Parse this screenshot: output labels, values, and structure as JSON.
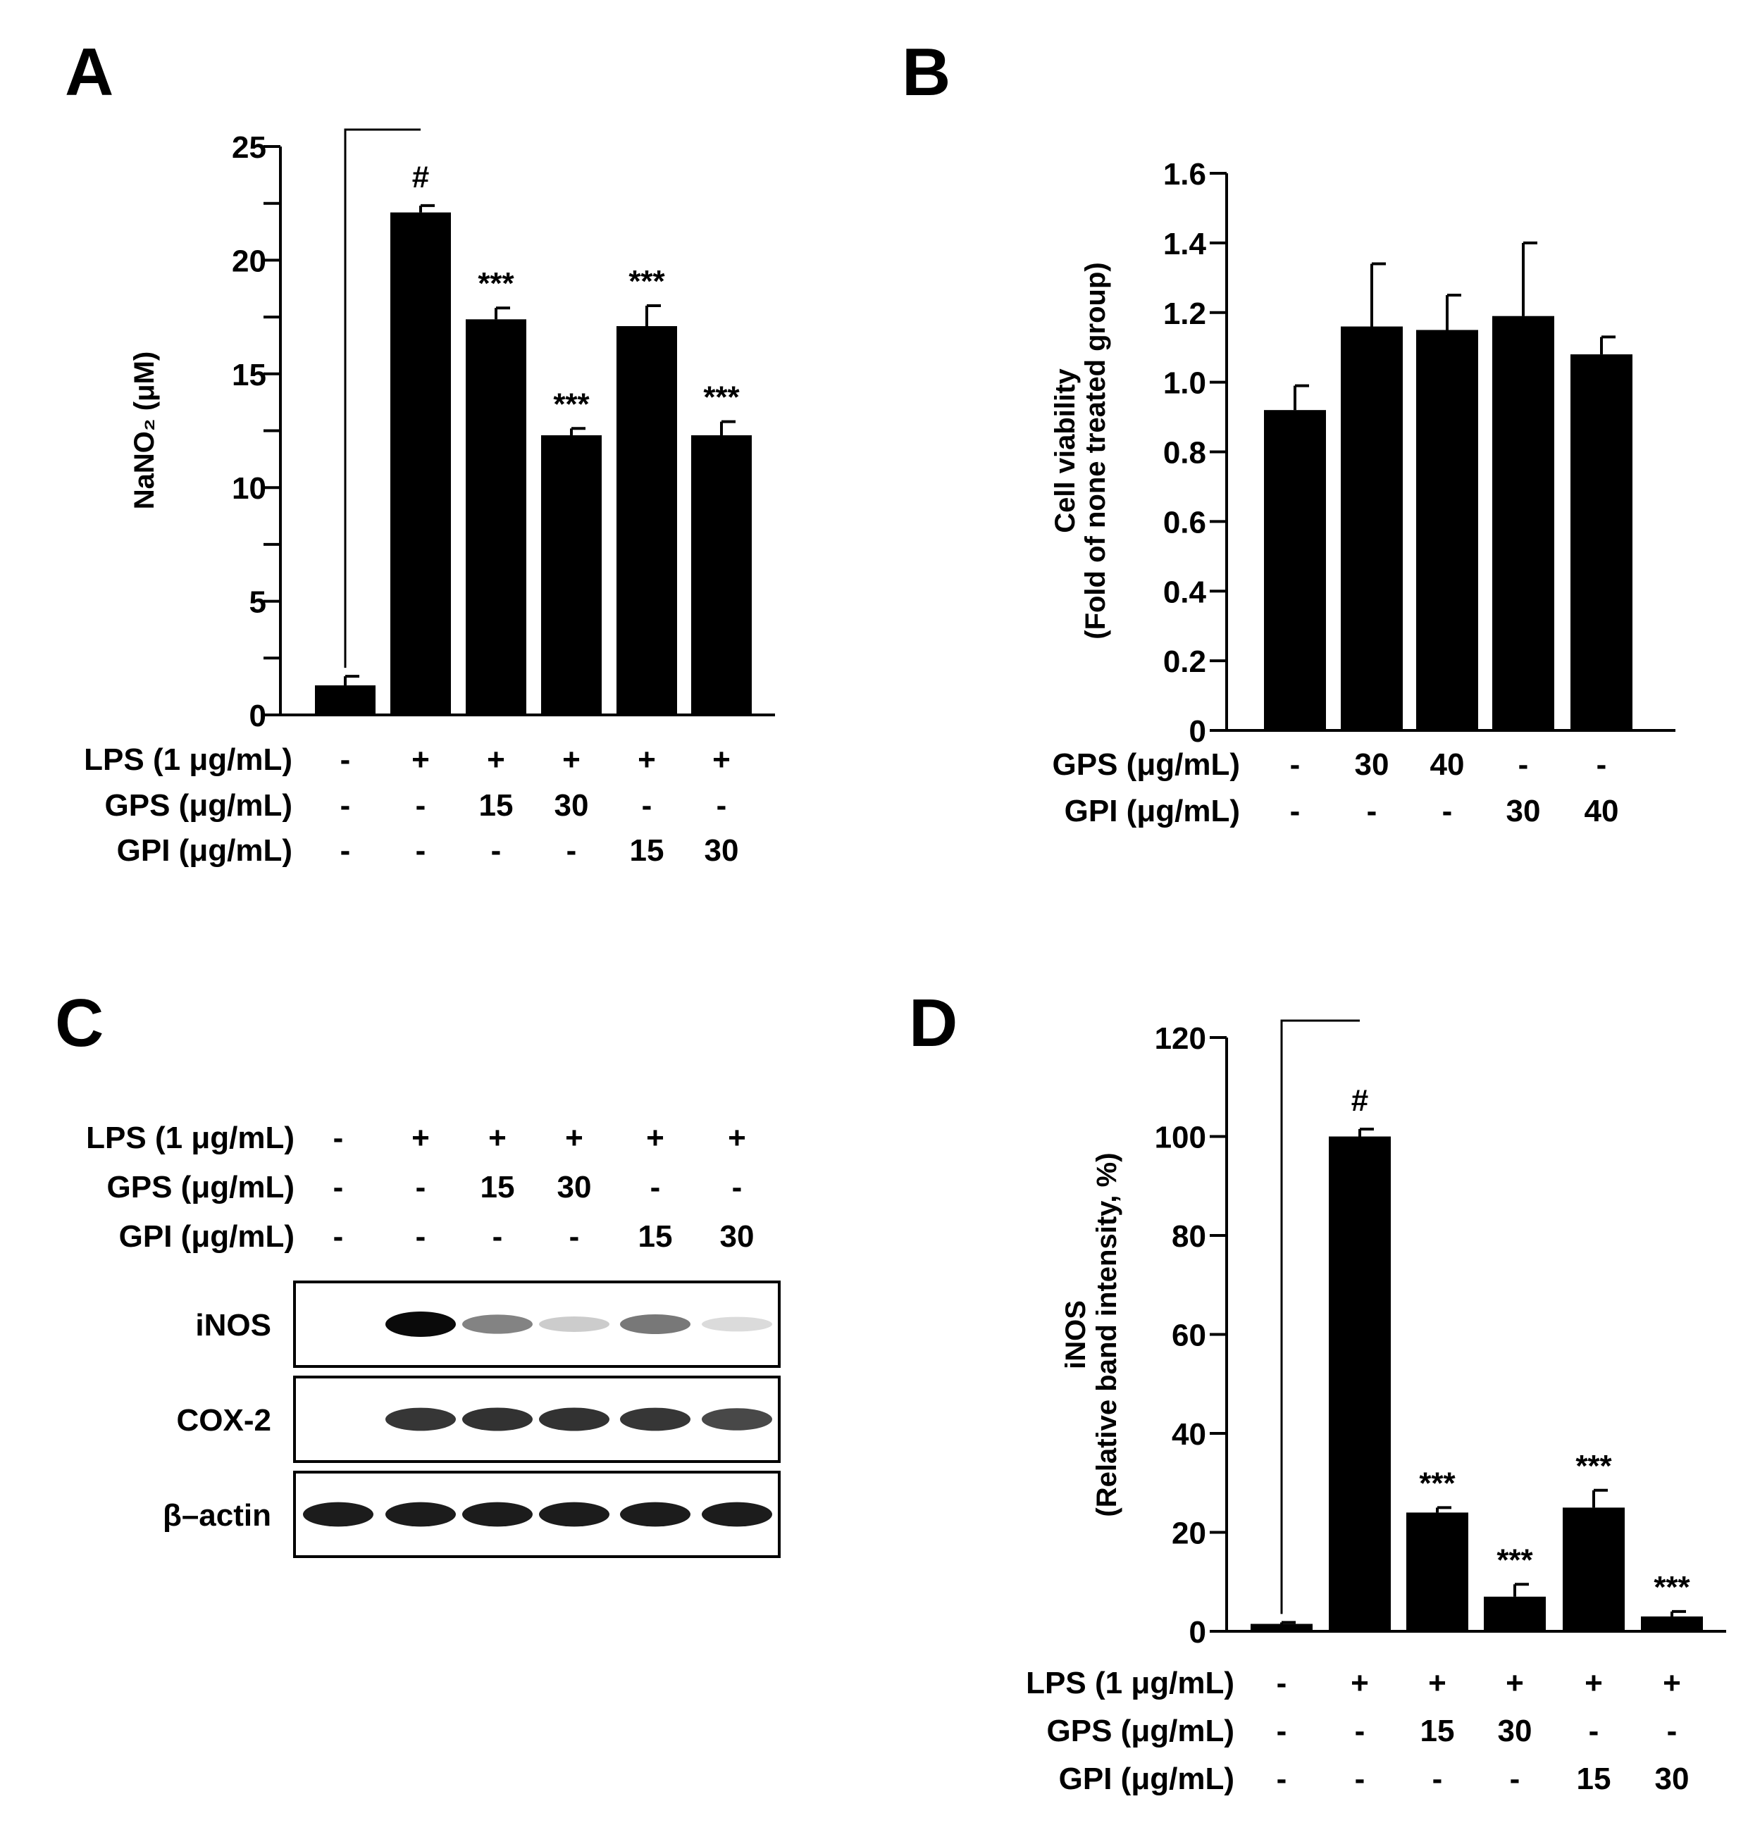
{
  "panels": {
    "A": "A",
    "B": "B",
    "C": "C",
    "D": "D"
  },
  "chart_data": [
    {
      "panel": "A",
      "type": "bar",
      "title": "",
      "xlabel": "",
      "ylabel": "NaNO₂ (μM)",
      "ylim": [
        0,
        25
      ],
      "yticks": [
        "0",
        "5",
        "10",
        "15",
        "20",
        "25"
      ],
      "values": [
        1.3,
        22.1,
        17.4,
        12.3,
        17.1,
        12.3
      ],
      "errors": [
        0.4,
        0.3,
        0.5,
        0.3,
        0.9,
        0.6
      ],
      "markers": [
        "",
        "#",
        "***",
        "***",
        "***",
        "***"
      ],
      "bracket": [
        0,
        1
      ],
      "conditions": [
        {
          "label": "LPS (1 μg/mL)",
          "values": [
            "-",
            "+",
            "+",
            "+",
            "+",
            "+"
          ]
        },
        {
          "label": "GPS (μg/mL)",
          "values": [
            "-",
            "-",
            "15",
            "30",
            "-",
            "-"
          ]
        },
        {
          "label": "GPI (μg/mL)",
          "values": [
            "-",
            "-",
            "-",
            "-",
            "15",
            "30"
          ]
        }
      ]
    },
    {
      "panel": "B",
      "type": "bar",
      "title": "",
      "xlabel": "",
      "ylabel_line1": "Cell viability",
      "ylabel_line2": "(Fold of none treated group)",
      "ylim": [
        0,
        1.6
      ],
      "yticks": [
        "0",
        "0.2",
        "0.4",
        "0.6",
        "0.8",
        "1.0",
        "1.2",
        "1.4",
        "1.6"
      ],
      "values": [
        0.92,
        1.16,
        1.15,
        1.19,
        1.08
      ],
      "errors": [
        0.07,
        0.18,
        0.1,
        0.21,
        0.05
      ],
      "conditions": [
        {
          "label": "GPS (μg/mL)",
          "values": [
            "-",
            "30",
            "40",
            "-",
            "-"
          ]
        },
        {
          "label": "GPI (μg/mL)",
          "values": [
            "-",
            "-",
            "-",
            "30",
            "40"
          ]
        }
      ]
    },
    {
      "panel": "D",
      "type": "bar",
      "title": "",
      "xlabel": "",
      "ylabel_line1": "iNOS",
      "ylabel_line2": "(Relative band intensity, %)",
      "ylim": [
        0,
        120
      ],
      "yticks": [
        "0",
        "20",
        "40",
        "60",
        "80",
        "100",
        "120"
      ],
      "values": [
        1.5,
        100,
        24,
        7,
        25,
        3
      ],
      "errors": [
        0.3,
        1.5,
        1,
        2.5,
        3.5,
        1
      ],
      "markers": [
        "",
        "#",
        "***",
        "***",
        "***",
        "***"
      ],
      "bracket": [
        0,
        1
      ],
      "conditions": [
        {
          "label": "LPS (1 μg/mL)",
          "values": [
            "-",
            "+",
            "+",
            "+",
            "+",
            "+"
          ]
        },
        {
          "label": "GPS (μg/mL)",
          "values": [
            "-",
            "-",
            "15",
            "30",
            "-",
            "-"
          ]
        },
        {
          "label": "GPI (μg/mL)",
          "values": [
            "-",
            "-",
            "-",
            "-",
            "15",
            "30"
          ]
        }
      ]
    }
  ],
  "blot": {
    "conditions": [
      {
        "label": "LPS (1 μg/mL)",
        "values": [
          "-",
          "+",
          "+",
          "+",
          "+",
          "+"
        ]
      },
      {
        "label": "GPS (μg/mL)",
        "values": [
          "-",
          "-",
          "15",
          "30",
          "-",
          "-"
        ]
      },
      {
        "label": "GPI (μg/mL)",
        "values": [
          "-",
          "-",
          "-",
          "-",
          "15",
          "30"
        ]
      }
    ],
    "rows": [
      {
        "label": "iNOS",
        "intensity": [
          0.0,
          1.0,
          0.45,
          0.12,
          0.5,
          0.05
        ]
      },
      {
        "label": "COX-2",
        "intensity": [
          0.0,
          0.8,
          0.82,
          0.82,
          0.8,
          0.72
        ]
      },
      {
        "label": "β–actin",
        "intensity": [
          0.92,
          0.92,
          0.92,
          0.92,
          0.92,
          0.92
        ]
      }
    ]
  }
}
